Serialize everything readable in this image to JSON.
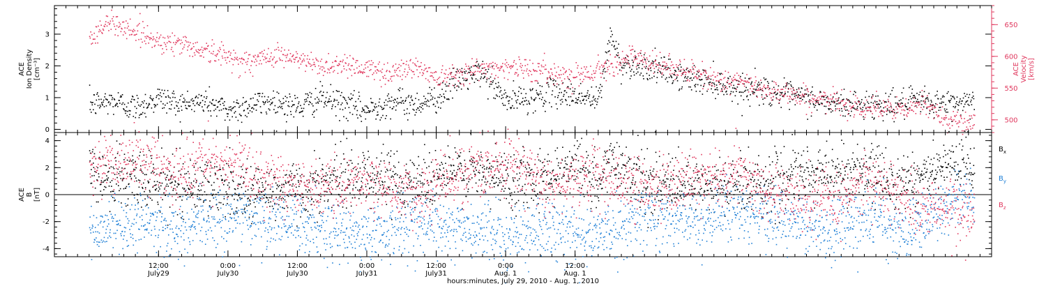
{
  "chart_data": [
    {
      "type": "scatter",
      "panel": "plasma",
      "ylabel_left": [
        "ACE",
        "Ion Density",
        "[cm⁻³]"
      ],
      "ylabel_right": [
        "ACE",
        "Velocity",
        "[km/s]"
      ],
      "ylim_left": [
        -0.1,
        3.9
      ],
      "yticks_left": [
        0,
        1,
        2,
        3
      ],
      "ylim_right": [
        480,
        680
      ],
      "yticks_right": [
        500,
        550,
        600,
        650
      ],
      "grid": false,
      "series": [
        {
          "name": "Ion Density",
          "axis": "left",
          "color": "#000000",
          "points": [
            [
              0.0,
              0.8
            ],
            [
              4,
              0.9
            ],
            [
              8,
              0.7
            ],
            [
              12,
              1.0
            ],
            [
              16,
              0.8
            ],
            [
              20,
              0.9
            ],
            [
              24,
              0.6
            ],
            [
              28,
              0.8
            ],
            [
              32,
              0.9
            ],
            [
              36,
              0.7
            ],
            [
              40,
              1.0
            ],
            [
              44,
              0.8
            ],
            [
              48,
              0.6
            ],
            [
              52,
              0.9
            ],
            [
              56,
              0.8
            ],
            [
              60,
              1.0
            ],
            [
              64,
              1.6
            ],
            [
              68,
              1.8
            ],
            [
              72,
              0.9
            ],
            [
              76,
              1.0
            ],
            [
              80,
              1.2
            ],
            [
              84,
              1.1
            ],
            [
              88,
              0.9
            ],
            [
              90,
              3.0
            ],
            [
              92,
              2.0
            ],
            [
              94,
              2.1
            ],
            [
              96,
              2.0
            ],
            [
              100,
              1.8
            ],
            [
              104,
              1.6
            ],
            [
              108,
              1.5
            ],
            [
              112,
              1.3
            ],
            [
              116,
              1.3
            ],
            [
              120,
              1.1
            ],
            [
              124,
              1.0
            ],
            [
              128,
              0.8
            ],
            [
              132,
              0.8
            ],
            [
              136,
              0.8
            ],
            [
              140,
              0.8
            ],
            [
              144,
              0.9
            ],
            [
              148,
              0.8
            ],
            [
              152,
              0.9
            ],
            [
              153,
              1.0
            ]
          ]
        },
        {
          "name": "Velocity",
          "axis": "right",
          "color": "#e0385e",
          "points": [
            [
              0.0,
              630
            ],
            [
              4,
              655
            ],
            [
              8,
              640
            ],
            [
              12,
              625
            ],
            [
              16,
              620
            ],
            [
              20,
              610
            ],
            [
              24,
              600
            ],
            [
              28,
              590
            ],
            [
              32,
              605
            ],
            [
              36,
              595
            ],
            [
              40,
              585
            ],
            [
              44,
              590
            ],
            [
              48,
              580
            ],
            [
              52,
              575
            ],
            [
              56,
              585
            ],
            [
              60,
              570
            ],
            [
              64,
              575
            ],
            [
              68,
              580
            ],
            [
              72,
              585
            ],
            [
              76,
              580
            ],
            [
              80,
              575
            ],
            [
              84,
              570
            ],
            [
              88,
              580
            ],
            [
              90,
              590
            ],
            [
              92,
              595
            ],
            [
              94,
              600
            ],
            [
              96,
              590
            ],
            [
              100,
              585
            ],
            [
              104,
              575
            ],
            [
              108,
              565
            ],
            [
              112,
              560
            ],
            [
              116,
              550
            ],
            [
              120,
              545
            ],
            [
              124,
              535
            ],
            [
              128,
              530
            ],
            [
              132,
              525
            ],
            [
              136,
              520
            ],
            [
              140,
              515
            ],
            [
              144,
              525
            ],
            [
              148,
              505
            ],
            [
              152,
              495
            ],
            [
              153,
              500
            ]
          ]
        }
      ]
    },
    {
      "type": "scatter",
      "panel": "magnetic",
      "ylabel_left": [
        "ACE",
        "B",
        "[nT]"
      ],
      "ylim_left": [
        -4.6,
        4.6
      ],
      "yticks_left": [
        -4,
        -2,
        0,
        2,
        4
      ],
      "zero_line": true,
      "grid": false,
      "series": [
        {
          "name": "Bx",
          "label_main": "B",
          "label_sub": "x",
          "color": "#000000",
          "points": [
            [
              0,
              1.5
            ],
            [
              8,
              1.2
            ],
            [
              16,
              0.8
            ],
            [
              24,
              0.5
            ],
            [
              32,
              0.2
            ],
            [
              40,
              0.8
            ],
            [
              48,
              1.5
            ],
            [
              56,
              1.0
            ],
            [
              64,
              1.8
            ],
            [
              72,
              1.2
            ],
            [
              80,
              1.5
            ],
            [
              84,
              2.5
            ],
            [
              88,
              0.5
            ],
            [
              90,
              2.8
            ],
            [
              96,
              1.0
            ],
            [
              104,
              0.5
            ],
            [
              112,
              0.8
            ],
            [
              120,
              1.2
            ],
            [
              128,
              1.8
            ],
            [
              136,
              1.5
            ],
            [
              140,
              1.0
            ],
            [
              144,
              1.5
            ],
            [
              148,
              2.0
            ],
            [
              152,
              2.2
            ],
            [
              153,
              2.1
            ]
          ]
        },
        {
          "name": "By",
          "label_main": "B",
          "label_sub": "y",
          "color": "#1e7fd6",
          "points": [
            [
              0,
              -2.5
            ],
            [
              8,
              -2.0
            ],
            [
              16,
              -2.5
            ],
            [
              24,
              -1.5
            ],
            [
              32,
              -2.0
            ],
            [
              40,
              -2.5
            ],
            [
              48,
              -3.0
            ],
            [
              56,
              -2.0
            ],
            [
              64,
              -2.5
            ],
            [
              72,
              -3.0
            ],
            [
              80,
              -2.5
            ],
            [
              88,
              -3.0
            ],
            [
              96,
              -1.5
            ],
            [
              104,
              -2.0
            ],
            [
              112,
              -1.0
            ],
            [
              120,
              -2.0
            ],
            [
              128,
              -2.5
            ],
            [
              136,
              -1.5
            ],
            [
              140,
              -3.0
            ],
            [
              144,
              -2.0
            ],
            [
              148,
              -1.0
            ],
            [
              152,
              0.5
            ],
            [
              153,
              0.0
            ]
          ]
        },
        {
          "name": "Bz",
          "label_main": "B",
          "label_sub": "z",
          "color": "#e0385e",
          "points": [
            [
              0,
              2.0
            ],
            [
              8,
              2.5
            ],
            [
              16,
              1.5
            ],
            [
              24,
              2.5
            ],
            [
              32,
              1.0
            ],
            [
              40,
              0.5
            ],
            [
              48,
              1.0
            ],
            [
              56,
              0.0
            ],
            [
              64,
              1.5
            ],
            [
              72,
              2.5
            ],
            [
              80,
              1.0
            ],
            [
              88,
              1.5
            ],
            [
              96,
              0.5
            ],
            [
              104,
              1.0
            ],
            [
              112,
              1.5
            ],
            [
              120,
              0.0
            ],
            [
              128,
              -0.5
            ],
            [
              136,
              1.0
            ],
            [
              140,
              0.0
            ],
            [
              144,
              -0.5
            ],
            [
              148,
              -1.0
            ],
            [
              152,
              -1.5
            ],
            [
              153,
              -1.0
            ]
          ]
        }
      ]
    }
  ],
  "x_axis": {
    "xlim_hours": [
      -6,
      156
    ],
    "major_ticks": [
      {
        "h": 12,
        "time": "12:00",
        "date": "July29"
      },
      {
        "h": 24,
        "time": "0:00",
        "date": "July30"
      },
      {
        "h": 36,
        "time": "12:00",
        "date": "July30"
      },
      {
        "h": 48,
        "time": "0:00",
        "date": "July31"
      },
      {
        "h": 60,
        "time": "12:00",
        "date": "July31"
      },
      {
        "h": 72,
        "time": "0:00",
        "date": "Aug. 1"
      },
      {
        "h": 84,
        "time": "12:00",
        "date": "Aug. 1"
      }
    ],
    "title": "hours:minutes, July 29, 2010 - Aug.  1, 2010"
  }
}
